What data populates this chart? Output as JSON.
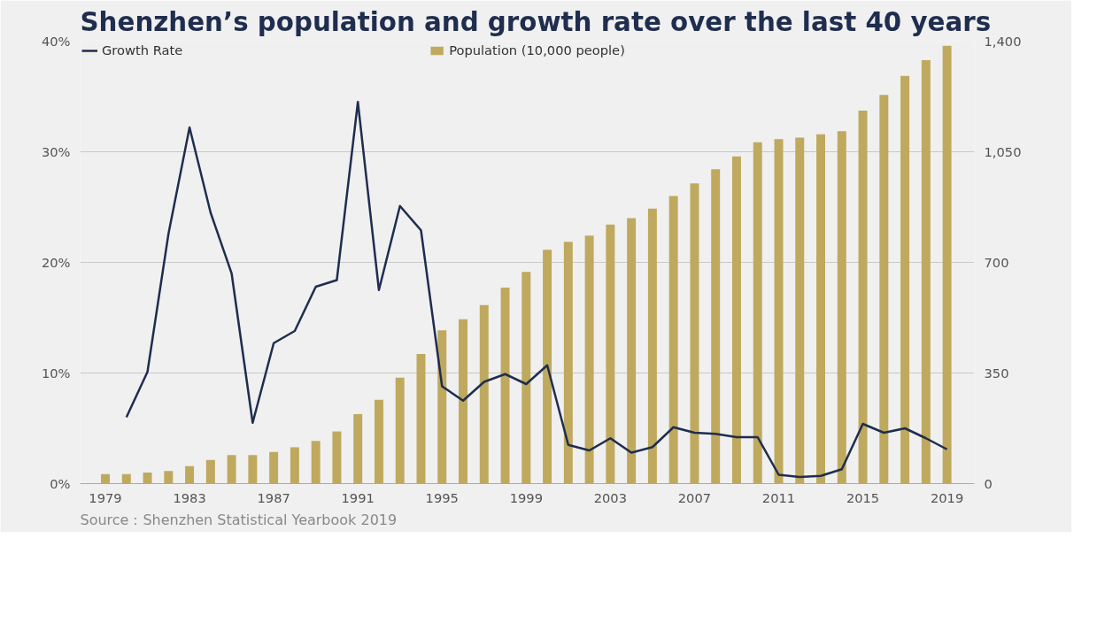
{
  "chart_data": {
    "type": "bar",
    "title": "Shenzhen’s population and growth rate over the last 40 years",
    "annotations": [
      "Source：Shenzhen Statistical Yearbook 2019"
    ],
    "x": [
      1979,
      1980,
      1981,
      1982,
      1983,
      1984,
      1985,
      1986,
      1987,
      1988,
      1989,
      1990,
      1991,
      1992,
      1993,
      1994,
      1995,
      1996,
      1997,
      1998,
      1999,
      2000,
      2001,
      2002,
      2003,
      2004,
      2005,
      2006,
      2007,
      2008,
      2009,
      2010,
      2011,
      2012,
      2013,
      2014,
      2015,
      2016,
      2017,
      2018,
      2019
    ],
    "series": [
      {
        "name": "Population (10,000 people)",
        "axis": "y2",
        "color": "#bfa95e",
        "values": [
          30,
          30,
          35,
          40,
          55,
          75,
          90,
          90,
          100,
          115,
          135,
          165,
          220,
          265,
          335,
          410,
          485,
          520,
          565,
          620,
          670,
          740,
          765,
          785,
          820,
          840,
          870,
          910,
          950,
          995,
          1035,
          1080,
          1090,
          1095,
          1105,
          1115,
          1180,
          1230,
          1290,
          1340,
          1385
        ]
      },
      {
        "name": "Growth Rate",
        "type": "line",
        "color": "#1f2d4f",
        "x": [
          1980,
          1981,
          1982,
          1983,
          1984,
          1985,
          1986,
          1987,
          1988,
          1989,
          1990,
          1991,
          1992,
          1993,
          1994,
          1995,
          1996,
          1997,
          1998,
          1999,
          2000,
          2001,
          2002,
          2003,
          2004,
          2005,
          2006,
          2007,
          2008,
          2009,
          2010,
          2011,
          2012,
          2013,
          2014,
          2015,
          2016,
          2017,
          2018,
          2019
        ],
        "values": [
          6.0,
          10.1,
          22.6,
          32.2,
          24.5,
          19.0,
          5.5,
          12.7,
          13.8,
          17.8,
          18.4,
          34.5,
          17.5,
          25.1,
          22.9,
          8.8,
          7.5,
          9.2,
          9.9,
          9.0,
          10.7,
          3.5,
          3.0,
          4.1,
          2.8,
          3.3,
          5.1,
          4.6,
          4.5,
          4.2,
          4.2,
          0.8,
          0.6,
          0.7,
          1.3,
          5.4,
          4.6,
          5.0,
          4.1,
          3.1
        ]
      }
    ],
    "xlim": [
      1977.8,
      2020.3
    ],
    "xticks": [
      1979,
      1983,
      1987,
      1991,
      1995,
      1999,
      2003,
      2007,
      2011,
      2015,
      2019
    ],
    "ylim": [
      0,
      40
    ],
    "yticks": [
      {
        "value": 0,
        "label": "0%"
      },
      {
        "value": 10,
        "label": "10%"
      },
      {
        "value": 20,
        "label": "20%"
      },
      {
        "value": 30,
        "label": "30%"
      },
      {
        "value": 40,
        "label": "40%"
      }
    ],
    "y2lim": [
      0,
      1400
    ],
    "y2ticks": [
      0,
      350,
      700,
      {
        "value": 1050,
        "label": "1,050"
      },
      {
        "value": 1400,
        "label": "1,400"
      }
    ],
    "grid": "y",
    "legend": "top",
    "line_style": "solid"
  }
}
